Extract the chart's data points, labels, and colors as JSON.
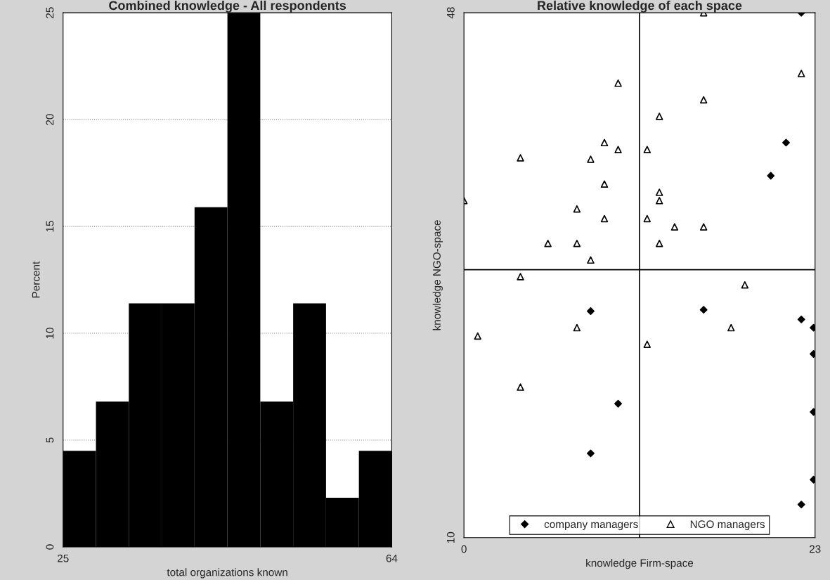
{
  "chart_data": [
    {
      "type": "histogram",
      "title": "Combined knowledge - All respondents",
      "xlabel": "total organizations known",
      "ylabel": "Percent",
      "bins": [
        25,
        28.9,
        32.8,
        36.7,
        40.6,
        44.5,
        48.4,
        52.3,
        56.2,
        60.1,
        64
      ],
      "values": [
        4.5,
        6.8,
        11.4,
        11.4,
        15.9,
        25,
        6.8,
        11.4,
        2.3,
        4.5
      ],
      "color": "#000000",
      "xlim": [
        25,
        64
      ],
      "xticks": [
        25,
        64
      ],
      "ylim": [
        0,
        25
      ],
      "yticks": [
        0,
        5,
        10,
        15,
        20,
        25
      ],
      "grid": "y"
    },
    {
      "type": "scatter",
      "title": "Relative knowledge of each space",
      "xlabel": "knowledge Firm-space",
      "ylabel": "knowledge NGO-space",
      "xlim": [
        0,
        23
      ],
      "xticks": [
        0,
        23
      ],
      "ylim": [
        10,
        48
      ],
      "yticks": [
        10,
        48
      ],
      "legend": "bottom",
      "ref_lines": [
        {
          "axis": "x",
          "value": 11.5,
          "color": "#000000"
        },
        {
          "axis": "y",
          "value": 29.4,
          "color": "#000000"
        }
      ],
      "series": [
        {
          "name": "company managers",
          "color": "#000000",
          "marker": "diamond",
          "x": [
            22.1,
            21.1,
            20.1,
            15.7,
            8.3,
            22.1,
            22.9,
            22.9,
            10.1,
            22.9,
            8.3,
            22.9,
            22.1
          ],
          "values": [
            48,
            38.6,
            36.2,
            26.5,
            26.4,
            25.8,
            25.2,
            23.3,
            19.7,
            19.1,
            16.1,
            14.2,
            12.4
          ]
        },
        {
          "name": "NGO managers",
          "color": "#000000",
          "marker": "triangle",
          "x": [
            15.7,
            22.1,
            10.1,
            12.8,
            15.7,
            9.2,
            10.1,
            12.0,
            3.7,
            8.3,
            9.2,
            12.8,
            12.8,
            0,
            7.4,
            9.2,
            12.0,
            13.8,
            15.7,
            5.5,
            7.4,
            12.8,
            8.3,
            3.7,
            18.4,
            7.4,
            17.5,
            0.9,
            12.0,
            3.7
          ],
          "values": [
            48,
            43.6,
            42.9,
            40.5,
            41.7,
            38.6,
            38.1,
            38.1,
            37.5,
            37.4,
            35.6,
            35.0,
            34.4,
            34.4,
            33.8,
            33.1,
            33.1,
            32.5,
            32.5,
            31.3,
            31.3,
            31.3,
            30.1,
            28.9,
            28.3,
            25.2,
            25.2,
            24.6,
            24.0,
            20.9
          ]
        }
      ]
    }
  ]
}
